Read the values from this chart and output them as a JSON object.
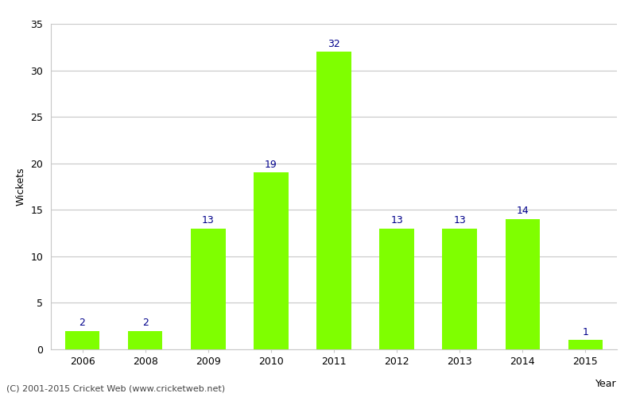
{
  "categories": [
    "2006",
    "2008",
    "2009",
    "2010",
    "2011",
    "2012",
    "2013",
    "2014",
    "2015"
  ],
  "values": [
    2,
    2,
    13,
    19,
    32,
    13,
    13,
    14,
    1
  ],
  "bar_color": "#7fff00",
  "bar_edge_color": "#7fff00",
  "label_color": "#00008b",
  "xlabel": "Year",
  "ylabel": "Wickets",
  "ylim": [
    0,
    35
  ],
  "yticks": [
    0,
    5,
    10,
    15,
    20,
    25,
    30,
    35
  ],
  "background_color": "#ffffff",
  "grid_color": "#c8c8c8",
  "footer_text": "(C) 2001-2015 Cricket Web (www.cricketweb.net)",
  "label_fontsize": 9,
  "axis_label_fontsize": 9,
  "tick_fontsize": 9,
  "bar_width": 0.55
}
